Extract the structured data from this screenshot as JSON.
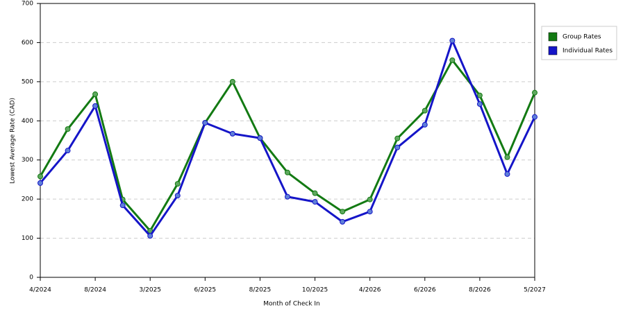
{
  "chart_data": {
    "type": "line",
    "x_label": "Month of Check In",
    "y_label": "Lowest Average Rate (CAD)",
    "categories": [
      "4/2024",
      null,
      "8/2024",
      null,
      "3/2025",
      null,
      "6/2025",
      null,
      "8/2025",
      null,
      "10/2025",
      null,
      "4/2026",
      null,
      "6/2026",
      null,
      "8/2026",
      null,
      "5/2027"
    ],
    "series": [
      {
        "name": "Group Rates",
        "color": "#137a13",
        "marker_color": "#5fa85f",
        "values": [
          258,
          379,
          468,
          199,
          119,
          239,
          395,
          500,
          356,
          268,
          215,
          168,
          199,
          355,
          426,
          555,
          465,
          307,
          472
        ]
      },
      {
        "name": "Individual Rates",
        "color": "#1515c8",
        "marker_color": "#5f7fd8",
        "values": [
          241,
          324,
          438,
          184,
          106,
          209,
          395,
          367,
          356,
          206,
          193,
          142,
          168,
          332,
          390,
          605,
          443,
          264,
          410
        ]
      }
    ],
    "ylim": [
      0,
      700
    ],
    "yticks": [
      0,
      100,
      200,
      300,
      400,
      500,
      600,
      700
    ],
    "grid": true,
    "legend": "right"
  }
}
